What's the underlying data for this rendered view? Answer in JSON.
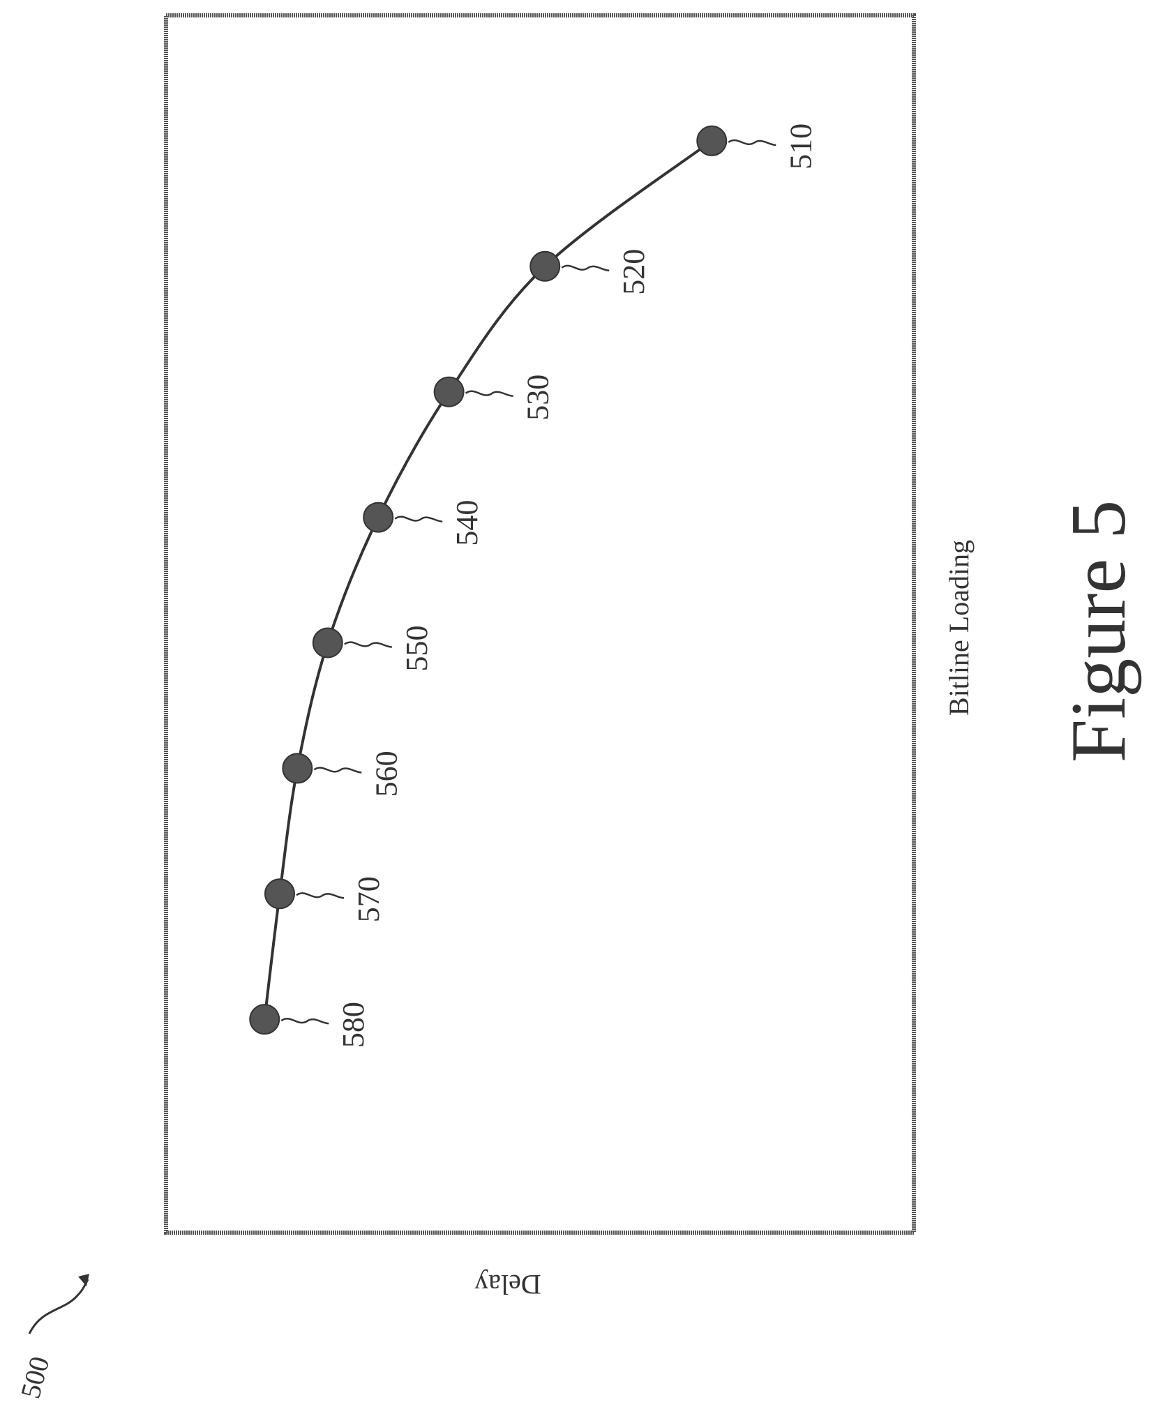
{
  "figure": {
    "ref_label": "500",
    "caption": "Figure 5"
  },
  "chart_data": {
    "type": "line",
    "title": "",
    "xlabel": "Bitline Loading",
    "ylabel": "Delay",
    "grid": false,
    "legend": "none",
    "orientation": "rotated-90-clockwise",
    "x": [
      1,
      2,
      3,
      4,
      5,
      6,
      7,
      8
    ],
    "series": [
      {
        "values": [
          4.0,
          7.3,
          9.2,
          10.6,
          11.6,
          12.2,
          12.55,
          12.85
        ],
        "labels": [
          "510",
          "520",
          "530",
          "540",
          "550",
          "560",
          "570",
          "580"
        ]
      }
    ],
    "xlim": [
      0,
      9.7
    ],
    "ylim": [
      0,
      14.8
    ]
  },
  "colors": {
    "ink": "#333333",
    "marker_fill": "#555555",
    "frame": "#555555",
    "background": "#ffffff"
  }
}
